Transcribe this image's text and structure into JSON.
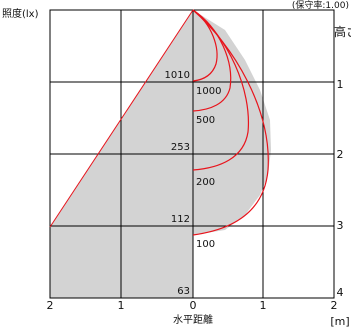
{
  "chart_data": {
    "type": "diagram",
    "header": {
      "left_label": "照度(lx)",
      "right_label": "(保守率:1.00)"
    },
    "right_axis": {
      "title": "高さ",
      "ticks": [
        "1",
        "2",
        "3",
        "4"
      ]
    },
    "bottom_axis": {
      "title": "水平距離",
      "unit": "[m]",
      "ticks": [
        "2",
        "1",
        "0",
        "1",
        "2"
      ]
    },
    "center_illuminance": [
      "1010",
      "253",
      "112",
      "63"
    ],
    "isolux_labels": [
      "1000",
      "500",
      "200",
      "100"
    ],
    "colors": {
      "grid": "#000000",
      "fill": "#d3d3d3",
      "curve": "#e8141c"
    }
  }
}
